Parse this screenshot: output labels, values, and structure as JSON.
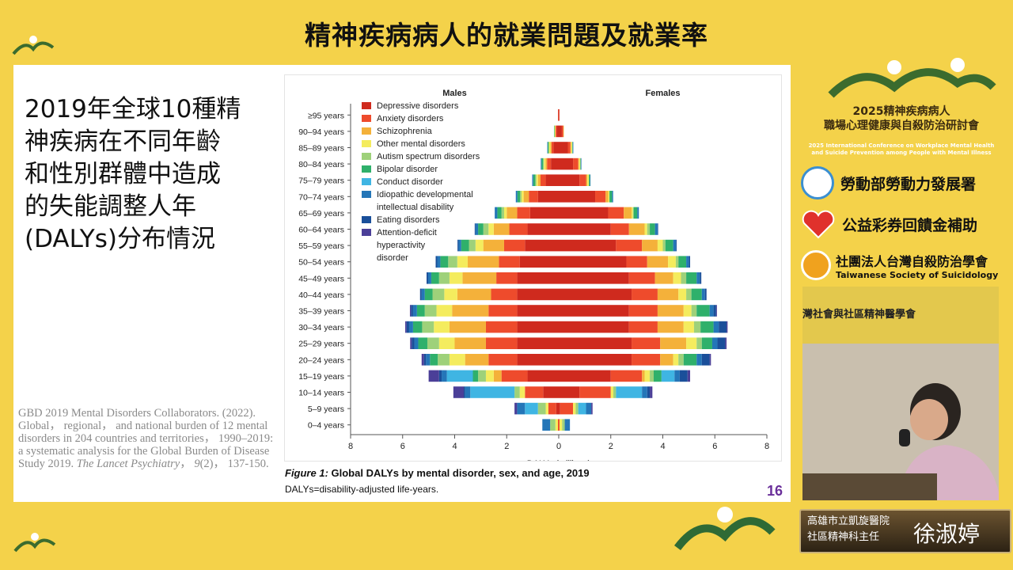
{
  "header": {
    "title": "精神疾病病人的就業問題及就業率"
  },
  "slide": {
    "heading_lines": [
      "2019年全球10種精",
      "神疾病在不同年齡",
      "和性別群體中造成",
      "的失能調整人年",
      "(DALYs)分布情況"
    ],
    "citation": {
      "part1": "GBD 2019 Mental Disorders Collaborators. (2022). Global， regional， and national burden of 12 mental disorders in 204 countries and territories， 1990–2019: a systematic analysis for the Global Burden of Disease Study 2019. ",
      "journal": "The Lancet Psychiatry",
      "part2": "， ",
      "volume": "9",
      "part3": "(2)， 137-150."
    },
    "caption_label": "Figure 1:",
    "caption_title": " Global DALYs by mental disorder, sex, and age, 2019",
    "caption_sub": "DALYs=disability-adjusted life-years.",
    "page_number": "16"
  },
  "chart_data": {
    "type": "bar",
    "subtype": "population-pyramid stacked horizontal",
    "title": "Global DALYs by mental disorder, sex, and age, 2019",
    "left_label": "Males",
    "right_label": "Females",
    "xlabel": "DALYs (millions)",
    "xlim": [
      -8,
      8
    ],
    "xticks": [
      -8,
      -6,
      -4,
      -2,
      0,
      2,
      4,
      6,
      8
    ],
    "xtick_labels": [
      "8",
      "6",
      "4",
      "2",
      "0",
      "2",
      "4",
      "6",
      "8"
    ],
    "age_groups": [
      "≥95 years",
      "90–94 years",
      "85–89 years",
      "80–84 years",
      "75–79 years",
      "70–74 years",
      "65–69 years",
      "60–64 years",
      "55–59 years",
      "50–54 years",
      "45–49 years",
      "40–44 years",
      "35–39 years",
      "30–34 years",
      "25–29 years",
      "20–24 years",
      "15–19 years",
      "10–14 years",
      "5–9 years",
      "0–4 years"
    ],
    "disorders": [
      {
        "name": "Depressive disorders",
        "color": "#cf2a1e"
      },
      {
        "name": "Anxiety disorders",
        "color": "#ee4b2c"
      },
      {
        "name": "Schizophrenia",
        "color": "#f4b13a"
      },
      {
        "name": "Other mental disorders",
        "color": "#f4ec5e"
      },
      {
        "name": "Autism spectrum disorders",
        "color": "#9ed17a"
      },
      {
        "name": "Bipolar disorder",
        "color": "#2fb06b"
      },
      {
        "name": "Conduct disorder",
        "color": "#3fb5e3"
      },
      {
        "name": "Idiopathic developmental intellectual disability",
        "color": "#2476b8"
      },
      {
        "name": "Eating disorders",
        "color": "#1a4f9a"
      },
      {
        "name": "Attention-deficit hyperactivity disorder",
        "color": "#4b3f98"
      }
    ],
    "legend_labels": [
      [
        "Depressive disorders"
      ],
      [
        "Anxiety disorders"
      ],
      [
        "Schizophrenia"
      ],
      [
        "Other mental disorders"
      ],
      [
        "Autism spectrum disorders"
      ],
      [
        "Bipolar disorder"
      ],
      [
        "Conduct disorder"
      ],
      [
        "Idiopathic developmental",
        "intellectual disability"
      ],
      [
        "Eating disorders"
      ],
      [
        "Attention-deficit",
        "hyperactivity",
        "disorder"
      ]
    ],
    "males": [
      [
        0.02,
        0.01,
        0,
        0,
        0,
        0,
        0,
        0,
        0,
        0
      ],
      [
        0.08,
        0.04,
        0,
        0.04,
        0,
        0.02,
        0,
        0,
        0,
        0
      ],
      [
        0.2,
        0.08,
        0.04,
        0.06,
        0,
        0.04,
        0,
        0.02,
        0,
        0
      ],
      [
        0.3,
        0.15,
        0.06,
        0.06,
        0.03,
        0.06,
        0,
        0.03,
        0,
        0
      ],
      [
        0.5,
        0.2,
        0.1,
        0.06,
        0.04,
        0.08,
        0,
        0.04,
        0,
        0
      ],
      [
        0.8,
        0.35,
        0.2,
        0.08,
        0.06,
        0.1,
        0,
        0.06,
        0,
        0
      ],
      [
        1.1,
        0.5,
        0.4,
        0.1,
        0.1,
        0.16,
        0,
        0.1,
        0,
        0
      ],
      [
        1.2,
        0.7,
        0.6,
        0.2,
        0.2,
        0.2,
        0,
        0.1,
        0.03,
        0
      ],
      [
        1.3,
        0.8,
        0.8,
        0.3,
        0.25,
        0.3,
        0,
        0.1,
        0.04,
        0
      ],
      [
        1.5,
        0.8,
        1.2,
        0.4,
        0.35,
        0.3,
        0,
        0.12,
        0.06,
        0
      ],
      [
        1.6,
        0.8,
        1.3,
        0.5,
        0.4,
        0.3,
        0,
        0.12,
        0.06,
        0
      ],
      [
        1.6,
        1.0,
        1.3,
        0.5,
        0.45,
        0.3,
        0,
        0.12,
        0.06,
        0
      ],
      [
        1.6,
        1.1,
        1.4,
        0.6,
        0.45,
        0.3,
        0,
        0.15,
        0.08,
        0.04
      ],
      [
        1.6,
        1.2,
        1.4,
        0.6,
        0.45,
        0.35,
        0,
        0.15,
        0.1,
        0.05
      ],
      [
        1.6,
        1.2,
        1.2,
        0.6,
        0.45,
        0.35,
        0,
        0.15,
        0.1,
        0.06
      ],
      [
        1.6,
        1.1,
        0.9,
        0.6,
        0.45,
        0.3,
        0,
        0.15,
        0.08,
        0.09
      ],
      [
        1.2,
        1.0,
        0.3,
        0.3,
        0.3,
        0.2,
        1.0,
        0.2,
        0.1,
        0.4
      ],
      [
        0.6,
        0.7,
        0,
        0.2,
        0.2,
        0,
        1.7,
        0.2,
        0.05,
        0.4
      ],
      [
        0.1,
        0.3,
        0,
        0.1,
        0.3,
        0,
        0.5,
        0.3,
        0,
        0.1
      ],
      [
        0,
        0.03,
        0,
        0.1,
        0.2,
        0,
        0,
        0.3,
        0,
        0
      ]
    ],
    "females": [
      [
        0.02,
        0.01,
        0,
        0,
        0,
        0,
        0,
        0,
        0,
        0
      ],
      [
        0.12,
        0.06,
        0,
        0.02,
        0,
        0,
        0,
        0,
        0,
        0
      ],
      [
        0.35,
        0.1,
        0.03,
        0.04,
        0,
        0.02,
        0,
        0.02,
        0,
        0
      ],
      [
        0.55,
        0.2,
        0.03,
        0.05,
        0,
        0.02,
        0,
        0.02,
        0,
        0
      ],
      [
        0.8,
        0.25,
        0.05,
        0.06,
        0,
        0.04,
        0,
        0.02,
        0,
        0
      ],
      [
        1.4,
        0.4,
        0.1,
        0.05,
        0,
        0.1,
        0,
        0.04,
        0,
        0
      ],
      [
        1.9,
        0.6,
        0.3,
        0.05,
        0.03,
        0.14,
        0,
        0.06,
        0,
        0
      ],
      [
        2.0,
        0.7,
        0.6,
        0.1,
        0.1,
        0.2,
        0,
        0.1,
        0.02,
        0
      ],
      [
        2.2,
        1.0,
        0.6,
        0.2,
        0.1,
        0.3,
        0,
        0.1,
        0.03,
        0
      ],
      [
        2.6,
        0.8,
        0.8,
        0.3,
        0.1,
        0.3,
        0,
        0.1,
        0.05,
        0
      ],
      [
        2.7,
        1.0,
        0.7,
        0.3,
        0.2,
        0.4,
        0,
        0.12,
        0.06,
        0
      ],
      [
        2.8,
        1.0,
        0.8,
        0.3,
        0.2,
        0.4,
        0,
        0.12,
        0.06,
        0
      ],
      [
        2.7,
        1.1,
        1.0,
        0.3,
        0.2,
        0.5,
        0,
        0.15,
        0.1,
        0.03
      ],
      [
        2.7,
        1.1,
        1.0,
        0.4,
        0.25,
        0.5,
        0,
        0.2,
        0.3,
        0.04
      ],
      [
        2.8,
        1.1,
        1.0,
        0.4,
        0.2,
        0.4,
        0,
        0.2,
        0.3,
        0.05
      ],
      [
        2.8,
        1.1,
        0.5,
        0.2,
        0.2,
        0.5,
        0,
        0.2,
        0.3,
        0.05
      ],
      [
        2.0,
        1.2,
        0.1,
        0.2,
        0.15,
        0.3,
        0.5,
        0.2,
        0.3,
        0.1
      ],
      [
        0.8,
        1.2,
        0,
        0.1,
        0.1,
        0,
        1.0,
        0.2,
        0.1,
        0.1
      ],
      [
        0.05,
        0.5,
        0,
        0.1,
        0.1,
        0,
        0.3,
        0.2,
        0,
        0.05
      ],
      [
        0,
        0.03,
        0,
        0.1,
        0.1,
        0,
        0,
        0.2,
        0,
        0
      ]
    ]
  },
  "sidebar": {
    "conf_title_1": "2025精神疾病病人",
    "conf_title_2": "職場心理健康與自殺防治研討會",
    "conf_en_1": "2025 International Conference on Workplace Mental Health",
    "conf_en_2": "and Suicide Prevention among People with Mental Illness",
    "sponsor1": "勞動部勞動力發展署",
    "sponsor2": "公益彩券回饋金補助",
    "sponsor3": "社團法人台灣自殺防治學會",
    "sponsor3_en": "Taiwanese Society of Suicidology",
    "video_banner": "灣社會與社區精神醫學會"
  },
  "nameplate": {
    "hospital": "高雄市立凱旋醫院",
    "dept": "社區精神科主任",
    "speaker": "徐淑婷"
  },
  "colors": {
    "background": "#f4d24a",
    "page_number": "#6a2f9a"
  }
}
